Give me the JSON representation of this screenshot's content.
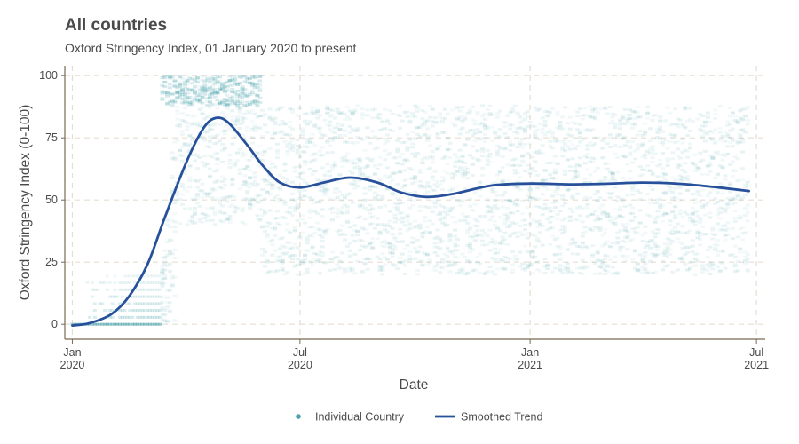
{
  "chart_data": {
    "type": "scatter",
    "title": "All countries",
    "subtitle": "Oxford Stringency Index, 01 January 2020 to present",
    "xlabel": "Date",
    "ylabel": "Oxford Stringency Index (0-100)",
    "xlim": [
      "2019-12-26",
      "2021-07-08"
    ],
    "ylim": [
      -6,
      104
    ],
    "x_ticks": [
      {
        "date": "2020-01-01",
        "line1": "Jan",
        "line2": "2020"
      },
      {
        "date": "2020-07-01",
        "line1": "Jul",
        "line2": "2020"
      },
      {
        "date": "2021-01-01",
        "line1": "Jan",
        "line2": "2021"
      },
      {
        "date": "2021-07-01",
        "line1": "Jul",
        "line2": "2021"
      }
    ],
    "y_ticks": [
      0,
      25,
      50,
      75,
      100
    ],
    "grid": true,
    "legend_position": "bottom",
    "legend": [
      {
        "label": "Individual Country",
        "kind": "point",
        "color": "#4aa3ab"
      },
      {
        "label": "Smoothed Trend",
        "kind": "line",
        "color": "#27509b"
      }
    ],
    "series": [
      {
        "name": "Smoothed Trend",
        "type": "line",
        "color": "#27509b",
        "points": [
          {
            "x": "2020-01-01",
            "y": -0.5
          },
          {
            "x": "2020-01-15",
            "y": 0.5
          },
          {
            "x": "2020-02-01",
            "y": 4
          },
          {
            "x": "2020-02-15",
            "y": 11
          },
          {
            "x": "2020-03-01",
            "y": 24
          },
          {
            "x": "2020-03-15",
            "y": 43
          },
          {
            "x": "2020-04-01",
            "y": 65
          },
          {
            "x": "2020-04-15",
            "y": 79
          },
          {
            "x": "2020-04-25",
            "y": 83
          },
          {
            "x": "2020-05-05",
            "y": 81
          },
          {
            "x": "2020-05-20",
            "y": 72
          },
          {
            "x": "2020-06-01",
            "y": 64
          },
          {
            "x": "2020-06-15",
            "y": 57
          },
          {
            "x": "2020-07-01",
            "y": 55
          },
          {
            "x": "2020-07-20",
            "y": 57
          },
          {
            "x": "2020-08-10",
            "y": 59
          },
          {
            "x": "2020-09-01",
            "y": 57
          },
          {
            "x": "2020-09-20",
            "y": 53
          },
          {
            "x": "2020-10-10",
            "y": 51.2
          },
          {
            "x": "2020-11-01",
            "y": 52.5
          },
          {
            "x": "2020-12-01",
            "y": 55.8
          },
          {
            "x": "2021-01-01",
            "y": 56.6
          },
          {
            "x": "2021-02-01",
            "y": 56.3
          },
          {
            "x": "2021-03-01",
            "y": 56.5
          },
          {
            "x": "2021-04-01",
            "y": 57
          },
          {
            "x": "2021-05-01",
            "y": 56.5
          },
          {
            "x": "2021-06-01",
            "y": 55
          },
          {
            "x": "2021-06-25",
            "y": 53.6
          }
        ]
      }
    ],
    "individual_country_cloud": {
      "color": "#4aa3ab",
      "date_range": [
        "2020-01-01",
        "2021-06-25"
      ],
      "pre_lockdown_levels": [
        0,
        2.8,
        5.6,
        8.3,
        11.1,
        13.9,
        16.7,
        19.4
      ],
      "bands": [
        {
          "from": "2020-01-01",
          "to": "2020-03-12",
          "low": 0,
          "high": 20
        },
        {
          "from": "2020-03-12",
          "to": "2020-03-25",
          "low": 0,
          "high": 90
        },
        {
          "from": "2020-03-25",
          "to": "2020-05-31",
          "low": 40,
          "high": 100
        },
        {
          "from": "2020-06-01",
          "to": "2021-06-25",
          "low": 20,
          "high": 88
        }
      ]
    }
  }
}
